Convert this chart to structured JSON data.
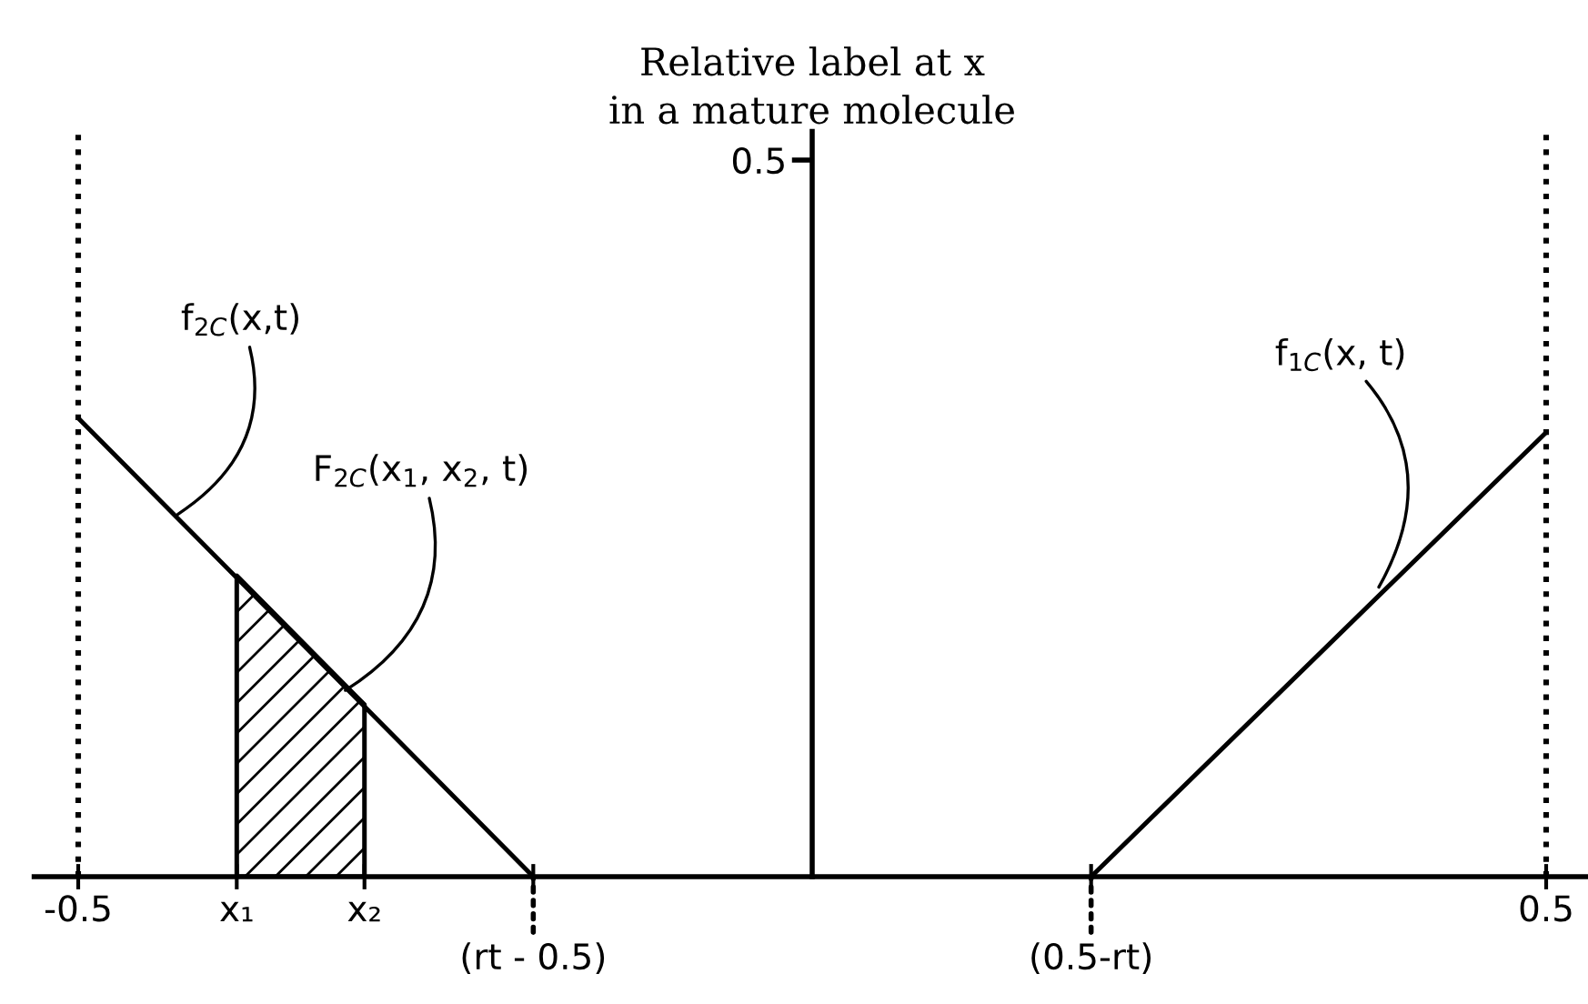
{
  "chart_data": {
    "type": "line",
    "ylabel": "Relative label at x\nin a mature molecule",
    "xlim": [
      -0.53,
      0.53
    ],
    "xticks": [
      {
        "value": -0.5,
        "label": "-0.5"
      },
      {
        "value": -0.392,
        "label": "x₁"
      },
      {
        "value": -0.305,
        "label": "x₂"
      },
      {
        "value": -0.19,
        "label": null
      },
      {
        "value": 0.19,
        "label": null
      },
      0.5
    ],
    "ylim": [
      0,
      0.52
    ],
    "yticks": [
      {
        "value": 0.5,
        "label": "0.5"
      }
    ],
    "series": [
      {
        "type": "area",
        "color": "#000000",
        "x": [
          -0.392,
          -0.305
        ],
        "values": [
          0.21,
          0.12
        ]
      },
      {
        "color": "#000000",
        "x": [
          -0.5,
          -0.19
        ],
        "values": [
          0.32,
          0
        ]
      },
      {
        "color": "#000000",
        "x": [
          0.19,
          0.5
        ],
        "values": [
          0,
          0.31
        ]
      }
    ],
    "ref_lines": [
      {
        "axis": "x",
        "value": -0.5,
        "line_style": "dotted",
        "color": "#000000"
      },
      {
        "axis": "x",
        "value": 0.5,
        "line_style": "dotted",
        "color": "#000000"
      }
    ],
    "annotations": [
      {
        "text": "f$_{2C}$(x,t)",
        "x": -0.432,
        "y": 0.253
      },
      {
        "text": "F$_{2C}$(x$_{1}$, x$_{2}$, t)",
        "x": -0.318,
        "y": 0.13
      },
      {
        "text": "f$_{1C}$(x, t)",
        "x": 0.386,
        "y": 0.202
      },
      {
        "text": "(rt - 0.5)",
        "x": -0.19,
        "y": 0
      },
      {
        "text": "(0.5-rt)",
        "x": 0.19,
        "y": 0
      }
    ],
    "grid": false,
    "legend": false,
    "marker": "none",
    "line_style": "solid"
  }
}
